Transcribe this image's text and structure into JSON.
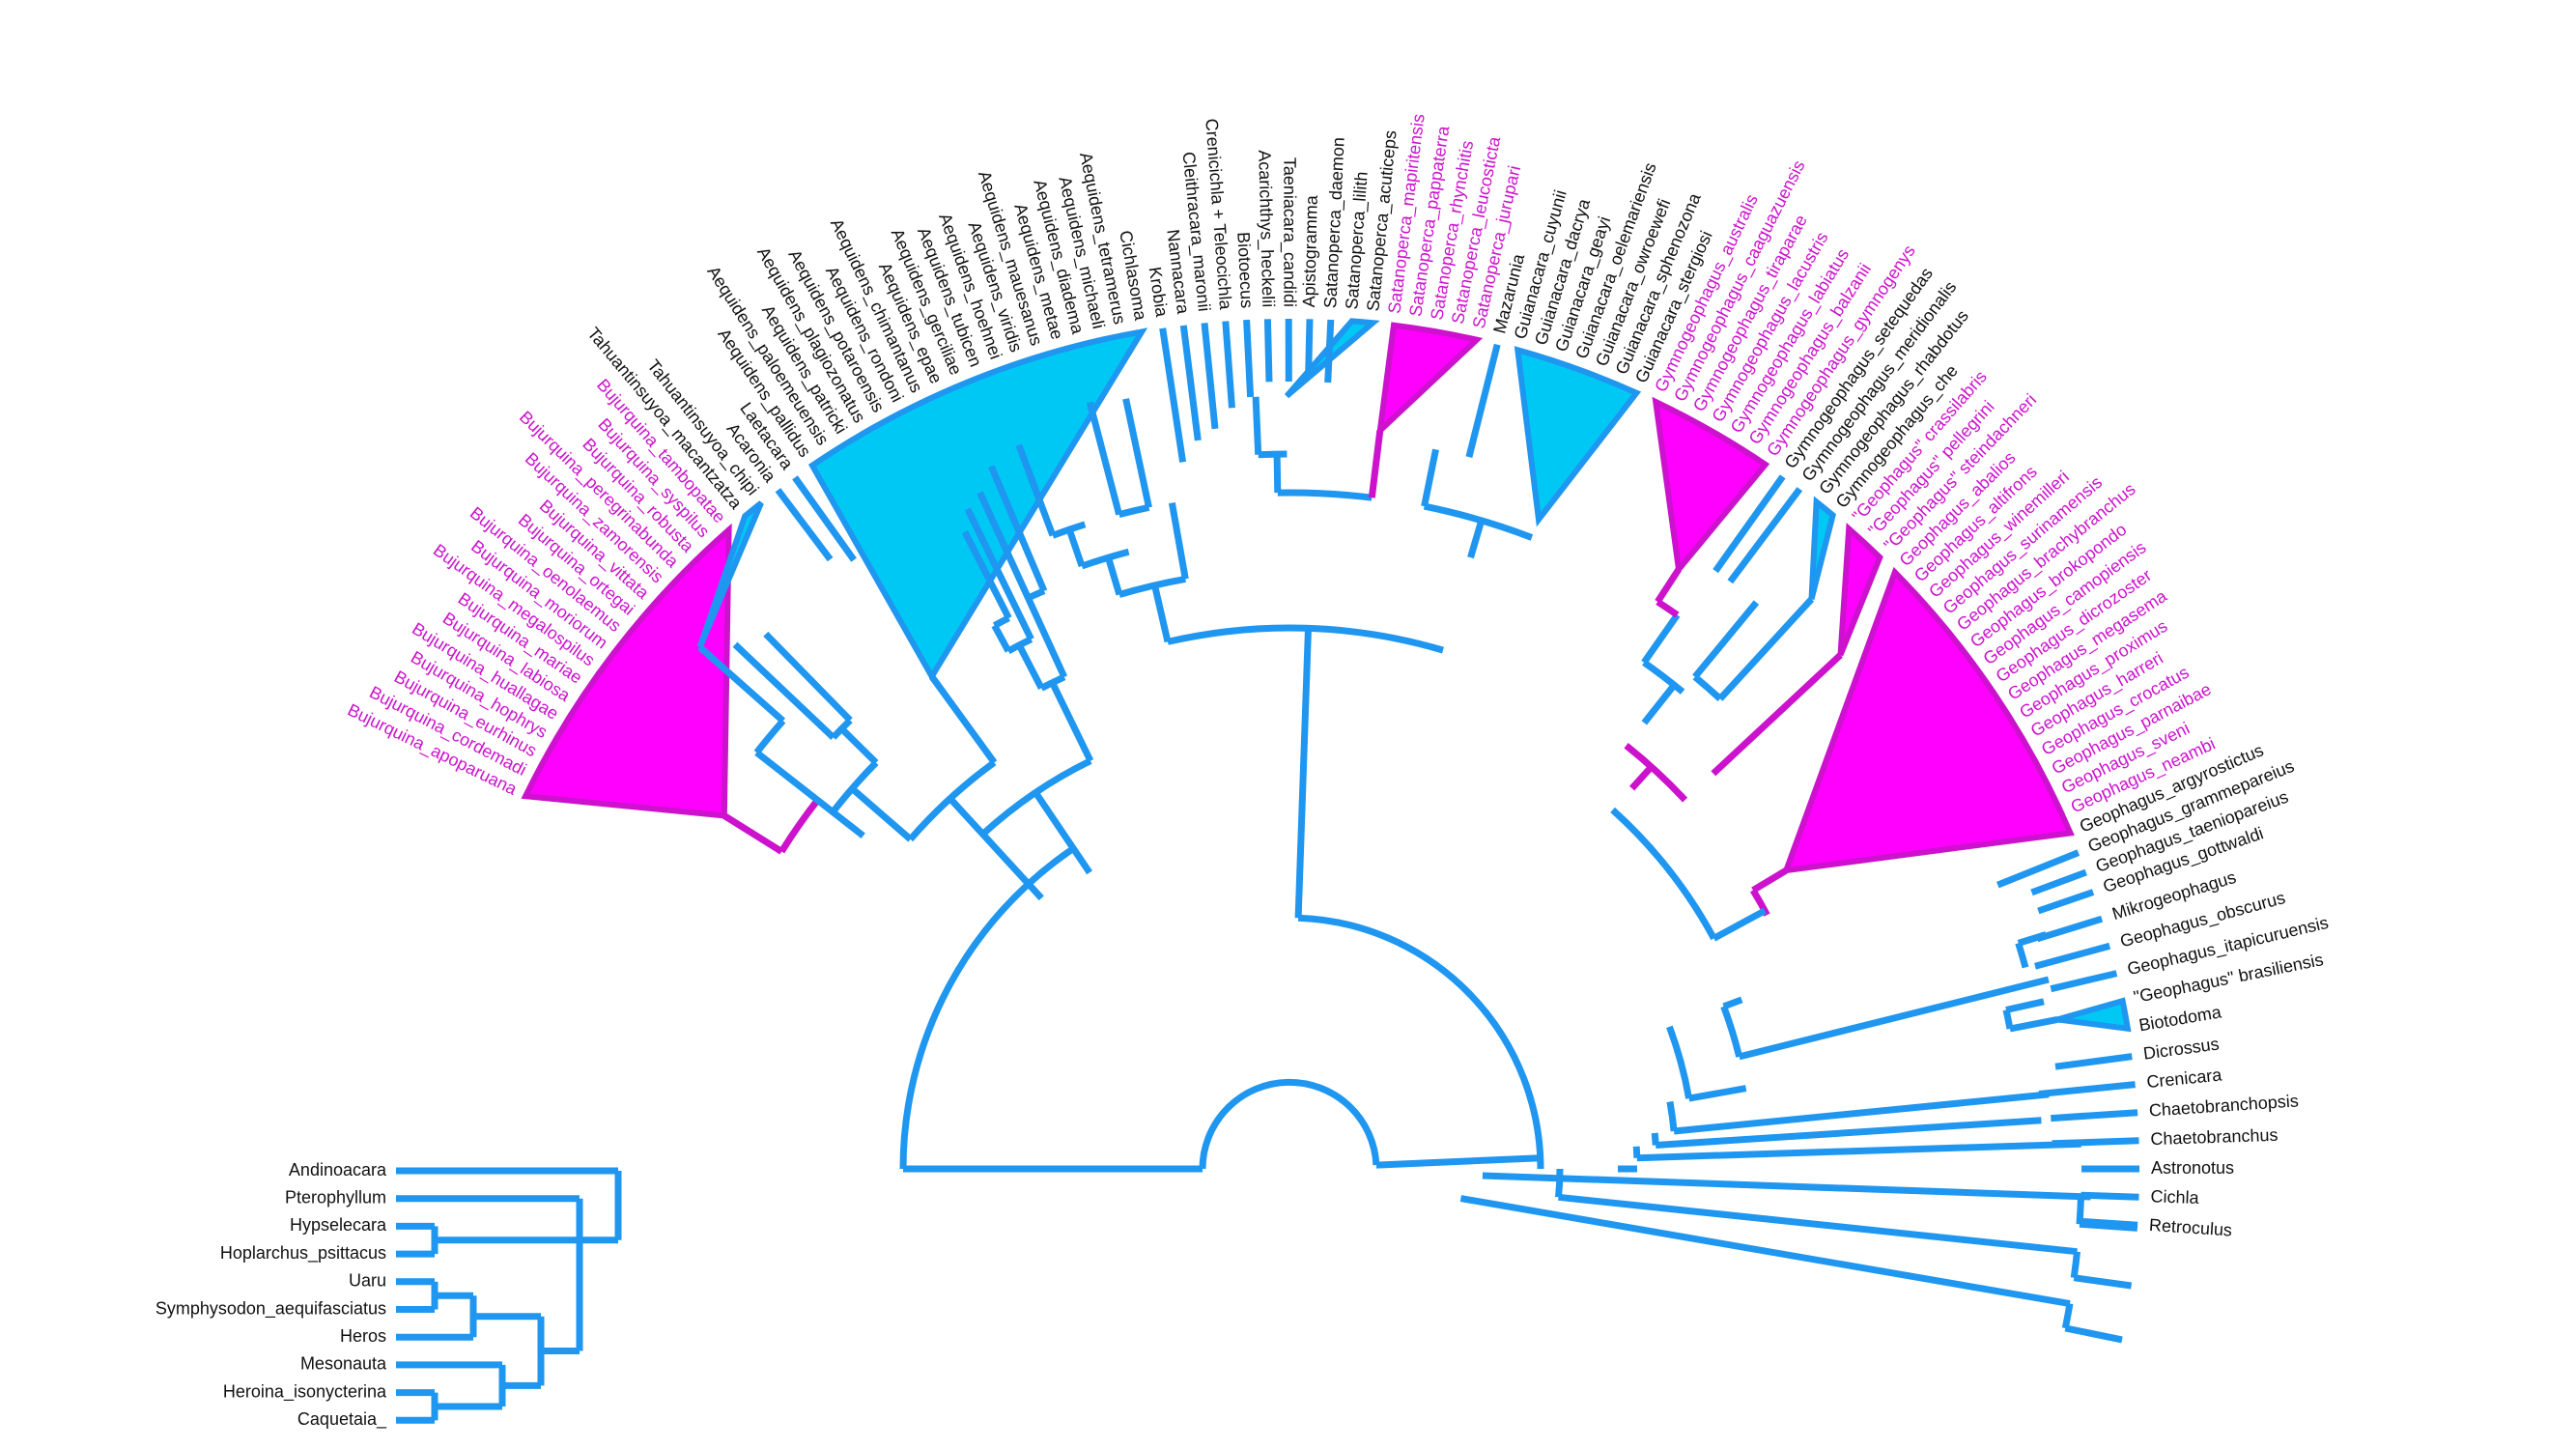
{
  "colors": {
    "branch": "#1f96f0",
    "highlight": "#cc12cc",
    "clade_blue": "#00c8f5",
    "clade_pink": "#ff00ff",
    "label": "#111111"
  },
  "tips": [
    {
      "label": "Bujurquina_apoparuana",
      "hl": true
    },
    {
      "label": "Bujurquina_cordemadi",
      "hl": true
    },
    {
      "label": "Bujurquina_eurhinus",
      "hl": true
    },
    {
      "label": "Bujurquina_hophrys",
      "hl": true
    },
    {
      "label": "Bujurquina_huallagae",
      "hl": true
    },
    {
      "label": "Bujurquina_labiosa",
      "hl": true
    },
    {
      "label": "Bujurquina_mariae",
      "hl": true
    },
    {
      "label": "Bujurquina_megalospilus",
      "hl": true
    },
    {
      "label": "Bujurquina_moriorum",
      "hl": true
    },
    {
      "label": "Bujurquina_oenolaemus",
      "hl": true
    },
    {
      "label": "Bujurquina_ortegai",
      "hl": true
    },
    {
      "label": "Bujurquina_vittata",
      "hl": true
    },
    {
      "label": "Bujurquina_zamorensis",
      "hl": true
    },
    {
      "label": "Bujurquina_peregrinabunda",
      "hl": true
    },
    {
      "label": "Bujurquina_robusta",
      "hl": true
    },
    {
      "label": "Bujurquina_syspilus",
      "hl": true
    },
    {
      "label": "Bujurquina_tambopatae",
      "hl": true
    },
    {
      "label": "Tahuantinsuyoa_macantzatza",
      "hl": false
    },
    {
      "label": "Tahuantinsuyoa_chipi",
      "hl": false
    },
    {
      "label": "Acaronia",
      "hl": false
    },
    {
      "label": "Laetacara",
      "hl": false
    },
    {
      "label": "Aequidens_pallidus",
      "hl": false
    },
    {
      "label": "Aequidens_paloemeuensis",
      "hl": false
    },
    {
      "label": "Aequidens_patricki",
      "hl": false
    },
    {
      "label": "Aequidens_plagiozonatus",
      "hl": false
    },
    {
      "label": "Aequidens_potaroensis",
      "hl": false
    },
    {
      "label": "Aequidens_rondoni",
      "hl": false
    },
    {
      "label": "Aequidens_chimantanus",
      "hl": false
    },
    {
      "label": "Aequidens_epae",
      "hl": false
    },
    {
      "label": "Aequidens_gerciliae",
      "hl": false
    },
    {
      "label": "Aequidens_tubicen",
      "hl": false
    },
    {
      "label": "Aequidens_hoehnei",
      "hl": false
    },
    {
      "label": "Aequidens_viridis",
      "hl": false
    },
    {
      "label": "Aequidens_mauesanus",
      "hl": false
    },
    {
      "label": "Aequidens_metae",
      "hl": false
    },
    {
      "label": "Aequidens_diadema",
      "hl": false
    },
    {
      "label": "Aequidens_michaeli",
      "hl": false
    },
    {
      "label": "Aequidens_tetramerus",
      "hl": false
    },
    {
      "label": "Cichlasoma",
      "hl": false
    },
    {
      "label": "Krobia",
      "hl": false
    },
    {
      "label": "Nannacara",
      "hl": false
    },
    {
      "label": "Cleithracara_maronii",
      "hl": false
    },
    {
      "label": "Crenicichla + Teleocichla",
      "hl": false
    },
    {
      "label": "Biotoecus",
      "hl": false
    },
    {
      "label": "Acarichthys_heckelii",
      "hl": false
    },
    {
      "label": "Taeniacara_candidi",
      "hl": false
    },
    {
      "label": "Apistogramma",
      "hl": false
    },
    {
      "label": "Satanoperca_daemon",
      "hl": false
    },
    {
      "label": "Satanoperca_lilith",
      "hl": false
    },
    {
      "label": "Satanoperca_acuticeps",
      "hl": false
    },
    {
      "label": "Satanoperca_mapiritensis",
      "hl": true
    },
    {
      "label": "Satanoperca_pappaterra",
      "hl": true
    },
    {
      "label": "Satanoperca_rhynchitis",
      "hl": true
    },
    {
      "label": "Satanoperca_leucosticta",
      "hl": true
    },
    {
      "label": "Satanoperca_jurupari",
      "hl": true
    },
    {
      "label": "Mazarunia",
      "hl": false
    },
    {
      "label": "Guianacara_cuyunii",
      "hl": false
    },
    {
      "label": "Guianacara_dacrya",
      "hl": false
    },
    {
      "label": "Guianacara_geayi",
      "hl": false
    },
    {
      "label": "Guianacara_oelemariensis",
      "hl": false
    },
    {
      "label": "Guianacara_owroewefi",
      "hl": false
    },
    {
      "label": "Guianacara_sphenozona",
      "hl": false
    },
    {
      "label": "Guianacara_stergiosi",
      "hl": false
    },
    {
      "label": "Gymnogeophagus_australis",
      "hl": true
    },
    {
      "label": "Gymnogeophagus_caaguazuensis",
      "hl": true
    },
    {
      "label": "Gymnogeophagus_tiraparae",
      "hl": true
    },
    {
      "label": "Gymnogeophagus_lacustris",
      "hl": true
    },
    {
      "label": "Gymnogeophagus_labiatus",
      "hl": true
    },
    {
      "label": "Gymnogeophagus_balzanii",
      "hl": true
    },
    {
      "label": "Gymnogeophagus_gymnogenys",
      "hl": true
    },
    {
      "label": "Gymnogeophagus_setequedas",
      "hl": false
    },
    {
      "label": "Gymnogeophagus_meridionalis",
      "hl": false
    },
    {
      "label": "Gymnogeophagus_rhabdotus",
      "hl": false
    },
    {
      "label": "Gymnogeophagus_che",
      "hl": false
    },
    {
      "label": "\"Geophagus\" crassilabris",
      "hl": true
    },
    {
      "label": "\"Geophagus\" pellegrini",
      "hl": true
    },
    {
      "label": "\"Geophagus\" steindachneri",
      "hl": true
    },
    {
      "label": "Geophagus_abalios",
      "hl": true
    },
    {
      "label": "Geophagus_altifrons",
      "hl": true
    },
    {
      "label": "Geophagus_winemilleri",
      "hl": true
    },
    {
      "label": "Geophagus_surinamensis",
      "hl": true
    },
    {
      "label": "Geophagus_brachybranchus",
      "hl": true
    },
    {
      "label": "Geophagus_brokopondo",
      "hl": true
    },
    {
      "label": "Geophagus_camopiensis",
      "hl": true
    },
    {
      "label": "Geophagus_dicrozoster",
      "hl": true
    },
    {
      "label": "Geophagus_megasema",
      "hl": true
    },
    {
      "label": "Geophagus_proximus",
      "hl": true
    },
    {
      "label": "Geophagus_harreri",
      "hl": true
    },
    {
      "label": "Geophagus_crocatus",
      "hl": true
    },
    {
      "label": "Geophagus_parnaibae",
      "hl": true
    },
    {
      "label": "Geophagus_sveni",
      "hl": true
    },
    {
      "label": "Geophagus_neambi",
      "hl": true
    },
    {
      "label": "Geophagus_argyrostictus",
      "hl": false
    },
    {
      "label": "Geophagus_grammepareius",
      "hl": false
    },
    {
      "label": "Geophagus_taeniopareius",
      "hl": false
    },
    {
      "label": "Geophagus_gottwaldi",
      "hl": false
    },
    {
      "label": "Mikrogeophagus",
      "hl": false
    },
    {
      "label": "Geophagus_obscurus",
      "hl": false
    },
    {
      "label": "Geophagus_itapicuruensis",
      "hl": false
    },
    {
      "label": "\"Geophagus\" brasiliensis",
      "hl": false
    },
    {
      "label": "Biotodoma",
      "hl": false
    },
    {
      "label": "Dicrossus",
      "hl": false
    },
    {
      "label": "Crenicara",
      "hl": false
    },
    {
      "label": "Chaetobranchopsis",
      "hl": false
    },
    {
      "label": "Chaetobranchus",
      "hl": false
    },
    {
      "label": "Astronotus",
      "hl": false
    },
    {
      "label": "Cichla",
      "hl": false
    },
    {
      "label": "Retroculus",
      "hl": false
    }
  ],
  "lower_left_tips": [
    "Andinoacara",
    "Pterophyllum",
    "Hypselecara",
    "Hoplarchus_psittacus",
    "Uaru",
    "Symphysodon_aequifasciatus",
    "Heros",
    "Mesonauta",
    "Heroina_isonycterina",
    "Caquetaia_"
  ]
}
